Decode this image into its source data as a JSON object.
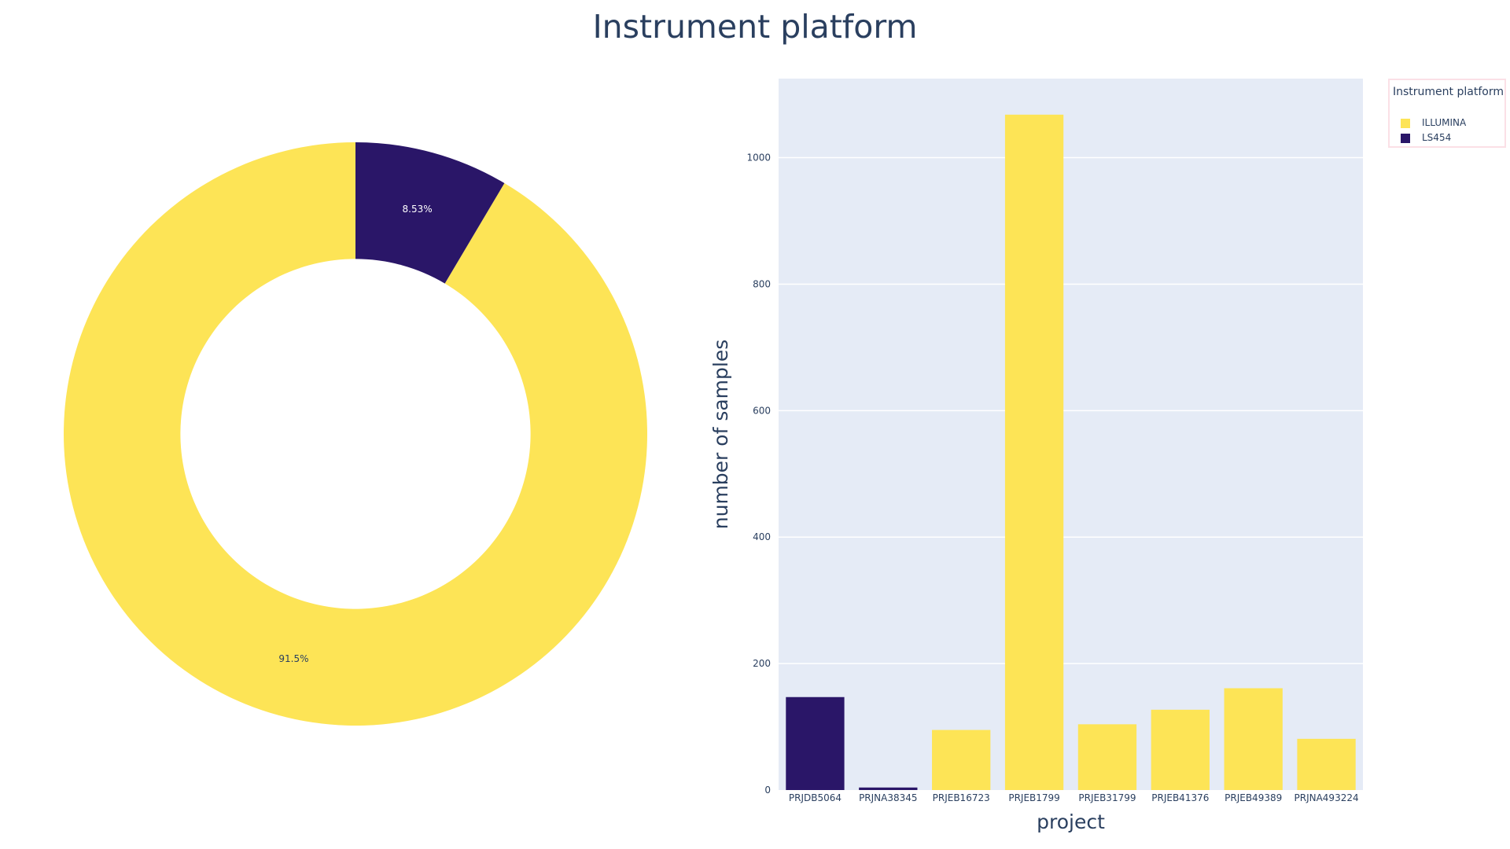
{
  "title": "Instrument platform",
  "colors": {
    "ILLUMINA": "#fde456",
    "LS454": "#2a1668",
    "plot_bg": "#e5ebf6",
    "grid": "#ffffff",
    "text": "#2a3f5f"
  },
  "legend": {
    "title": "Instrument platform",
    "items": [
      {
        "label": "ILLUMINA",
        "color": "#fde456"
      },
      {
        "label": "LS454",
        "color": "#2a1668"
      }
    ]
  },
  "chart_data": [
    {
      "type": "pie",
      "hole": 0.6,
      "labels": [
        "ILLUMINA",
        "LS454"
      ],
      "values": [
        91.5,
        8.53
      ],
      "text": [
        "91.5%",
        "8.53%"
      ],
      "colors": [
        "#fde456",
        "#2a1668"
      ]
    },
    {
      "type": "bar",
      "xlabel": "project",
      "ylabel": "number of samples",
      "categories": [
        "PRJDB5064",
        "PRJNA38345",
        "PRJEB16723",
        "PRJEB1799",
        "PRJEB31799",
        "PRJEB41376",
        "PRJEB49389",
        "PRJNA493224"
      ],
      "platforms": [
        "LS454",
        "LS454",
        "ILLUMINA",
        "ILLUMINA",
        "ILLUMINA",
        "ILLUMINA",
        "ILLUMINA",
        "ILLUMINA"
      ],
      "values": [
        147,
        4,
        95,
        1068,
        104,
        127,
        161,
        81
      ],
      "ylim": [
        0,
        1125
      ],
      "yticks": [
        0,
        200,
        400,
        600,
        800,
        1000
      ],
      "grid": true,
      "legend_position": "top-right"
    }
  ]
}
